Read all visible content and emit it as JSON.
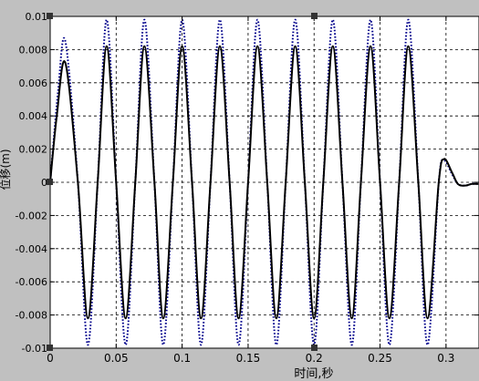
{
  "chart_data": {
    "type": "line",
    "xlabel": "时间,秒",
    "ylabel": "位移(m)",
    "xlim": [
      0,
      0.325
    ],
    "ylim": [
      -0.01,
      0.01
    ],
    "grid": true,
    "x_ticks": [
      0,
      0.05,
      0.1,
      0.15,
      0.2,
      0.25,
      0.3
    ],
    "x_tick_labels": [
      "0",
      "0.05",
      "0.1",
      "0.15",
      "0.2",
      "0.25",
      "0.3"
    ],
    "y_ticks": [
      -0.01,
      -0.008,
      -0.006,
      -0.004,
      -0.002,
      0,
      0.002,
      0.004,
      0.006,
      0.008,
      0.01
    ],
    "y_tick_labels": [
      "-0.01",
      "-0.008",
      "-0.006",
      "-0.004",
      "-0.002",
      "0",
      "0.002",
      "0.004",
      "0.006",
      "0.008",
      "0.01"
    ],
    "series": [
      {
        "style": "solid",
        "color": "#000000",
        "x": [
          0,
          0.005,
          0.0115,
          0.021,
          0.0286,
          0.036,
          0.0428,
          0.05,
          0.0572,
          0.0645,
          0.0714,
          0.079,
          0.0857,
          0.093,
          0.1,
          0.1075,
          0.1143,
          0.1215,
          0.1286,
          0.136,
          0.1428,
          0.15,
          0.1571,
          0.1645,
          0.1714,
          0.1785,
          0.1857,
          0.193,
          0.2,
          0.207,
          0.2142,
          0.2215,
          0.2286,
          0.2355,
          0.2428,
          0.25,
          0.2571,
          0.2645,
          0.2714,
          0.279,
          0.286,
          0.2945,
          0.2985,
          0.3045,
          0.309,
          0.3145,
          0.3195,
          0.3245
        ],
        "y": [
          0,
          0.004,
          0.0072,
          0,
          -0.0082,
          0,
          0.0082,
          0,
          -0.0082,
          0,
          0.0082,
          0,
          -0.0082,
          0,
          0.0082,
          0,
          -0.0082,
          0,
          0.0082,
          0,
          -0.0082,
          0,
          0.0082,
          0,
          -0.0082,
          0,
          0.0082,
          0,
          -0.0082,
          0,
          0.0082,
          0,
          -0.0082,
          0,
          0.0082,
          0,
          -0.0082,
          0,
          0.0082,
          0,
          -0.0082,
          0,
          0.0014,
          0.0006,
          -0.0001,
          -0.0002,
          -0.0001,
          -0.0001
        ]
      },
      {
        "style": "dotted",
        "color": "#00008b",
        "x": [
          0,
          0.006,
          0.0115,
          0.021,
          0.0286,
          0.036,
          0.0428,
          0.05,
          0.0572,
          0.0645,
          0.0714,
          0.079,
          0.0857,
          0.093,
          0.1,
          0.1075,
          0.1143,
          0.1215,
          0.1286,
          0.136,
          0.1428,
          0.15,
          0.1571,
          0.1645,
          0.1714,
          0.1785,
          0.1857,
          0.193,
          0.2,
          0.207,
          0.2142,
          0.2215,
          0.2286,
          0.2355,
          0.2428,
          0.25,
          0.2571,
          0.2645,
          0.2714,
          0.279,
          0.286,
          0.2945,
          0.2985,
          0.3045,
          0.309,
          0.3145,
          0.3195,
          0.3245
        ],
        "y": [
          0,
          0.0055,
          0.0085,
          0,
          -0.0098,
          0,
          0.0098,
          0,
          -0.0098,
          0,
          0.0098,
          0,
          -0.0098,
          0,
          0.0098,
          0,
          -0.0098,
          0,
          0.0098,
          0,
          -0.0098,
          0,
          0.0098,
          0,
          -0.0098,
          0,
          0.0098,
          0,
          -0.0098,
          0,
          0.0098,
          0,
          -0.0098,
          0,
          0.0098,
          0,
          -0.0098,
          0,
          0.0098,
          0,
          -0.0098,
          0,
          0.0013,
          0.0005,
          -0.0001,
          -0.0002,
          -0.0001,
          -0.0001
        ]
      }
    ]
  }
}
